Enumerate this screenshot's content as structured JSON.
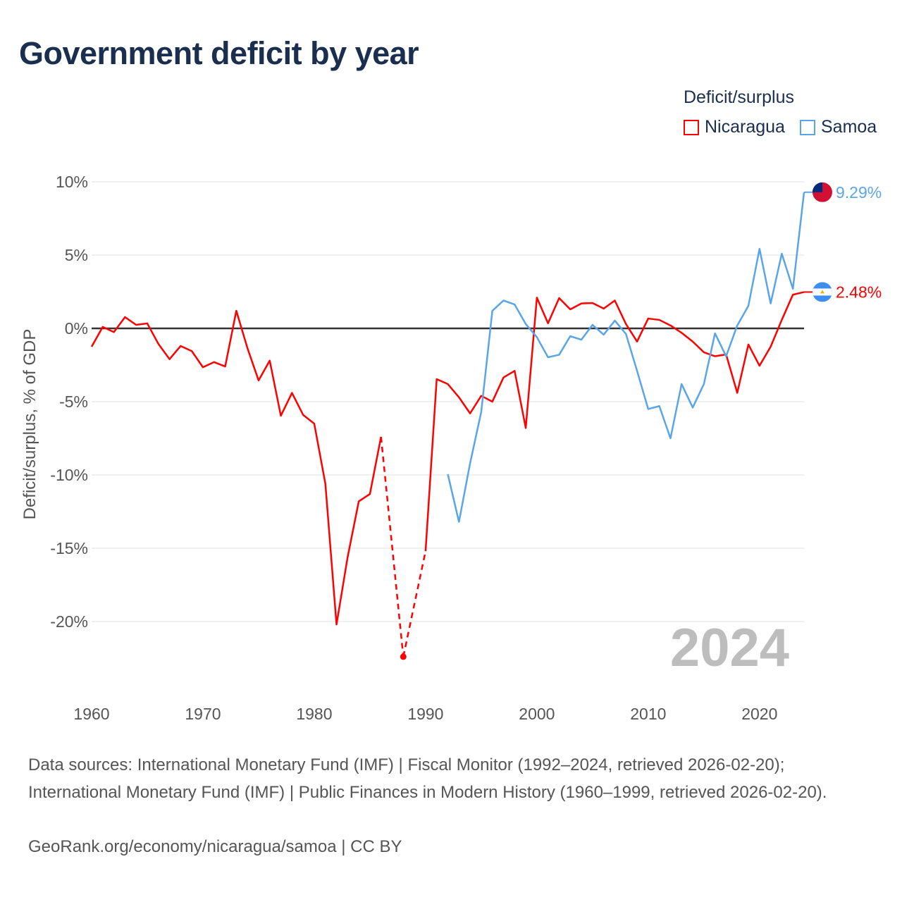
{
  "title": "Government deficit by year",
  "legend": {
    "title": "Deficit/surplus",
    "items": [
      {
        "name": "Nicaragua",
        "color": "#ff0000"
      },
      {
        "name": "Samoa",
        "color": "#5aa5e8"
      }
    ]
  },
  "chart_data": {
    "type": "line",
    "title": "Government deficit by year",
    "ylabel": "Deficit/surplus, % of GDP",
    "xlabel": "",
    "xlim": [
      1960,
      2024
    ],
    "ylim": [
      -24,
      10
    ],
    "x_ticks": [
      1960,
      1970,
      1980,
      1990,
      2000,
      2010,
      2020
    ],
    "x_tick_labels": [
      "1960",
      "1970",
      "1980",
      "1990",
      "2000",
      "2010",
      "2020"
    ],
    "y_ticks": [
      10,
      5,
      0,
      -5,
      -10,
      -15,
      -20
    ],
    "y_tick_labels": [
      "10%",
      "5%",
      "0%",
      "-5%",
      "-10%",
      "-15%",
      "-20%"
    ],
    "grid": true,
    "legend_position": "top-right",
    "year_watermark": "2024",
    "series": [
      {
        "name": "Nicaragua",
        "color": "#ff0000",
        "end_label": "2.48%",
        "points": [
          [
            1960,
            -1.25
          ],
          [
            1961,
            0.1
          ],
          [
            1962,
            -0.25
          ],
          [
            1963,
            0.77
          ],
          [
            1964,
            0.24
          ],
          [
            1965,
            0.34
          ],
          [
            1966,
            -1.06
          ],
          [
            1967,
            -2.1
          ],
          [
            1968,
            -1.2
          ],
          [
            1969,
            -1.55
          ],
          [
            1970,
            -2.65
          ],
          [
            1971,
            -2.3
          ],
          [
            1972,
            -2.6
          ],
          [
            1973,
            1.2
          ],
          [
            1974,
            -1.35
          ],
          [
            1975,
            -3.55
          ],
          [
            1976,
            -2.2
          ],
          [
            1977,
            -5.96
          ],
          [
            1978,
            -4.4
          ],
          [
            1979,
            -5.9
          ],
          [
            1980,
            -6.5
          ],
          [
            1981,
            -10.6
          ],
          [
            1982,
            -20.2
          ],
          [
            1983,
            -15.6
          ],
          [
            1984,
            -11.8
          ],
          [
            1985,
            -11.3
          ],
          [
            1986,
            -7.4
          ],
          [
            1988,
            -22.4
          ],
          [
            1990,
            -15.2
          ],
          [
            1991,
            -3.46
          ],
          [
            1992,
            -3.8
          ],
          [
            1993,
            -4.7
          ],
          [
            1994,
            -5.8
          ],
          [
            1995,
            -4.6
          ],
          [
            1996,
            -5.0
          ],
          [
            1997,
            -3.35
          ],
          [
            1998,
            -2.9
          ],
          [
            1999,
            -6.8
          ],
          [
            2000,
            2.1
          ],
          [
            2001,
            0.35
          ],
          [
            2002,
            2.07
          ],
          [
            2003,
            1.3
          ],
          [
            2004,
            1.7
          ],
          [
            2005,
            1.73
          ],
          [
            2006,
            1.35
          ],
          [
            2007,
            1.9
          ],
          [
            2008,
            0.3
          ],
          [
            2009,
            -0.9
          ],
          [
            2010,
            0.67
          ],
          [
            2011,
            0.58
          ],
          [
            2012,
            0.2
          ],
          [
            2013,
            -0.3
          ],
          [
            2014,
            -0.9
          ],
          [
            2015,
            -1.63
          ],
          [
            2016,
            -1.9
          ],
          [
            2017,
            -1.78
          ],
          [
            2018,
            -4.4
          ],
          [
            2019,
            -1.1
          ],
          [
            2020,
            -2.55
          ],
          [
            2021,
            -1.25
          ],
          [
            2022,
            0.58
          ],
          [
            2023,
            2.3
          ],
          [
            2024,
            2.48
          ]
        ]
      },
      {
        "name": "Samoa",
        "color": "#5aa5e8",
        "end_label": "9.29%",
        "points": [
          [
            1992,
            -9.95
          ],
          [
            1993,
            -13.2
          ],
          [
            1994,
            -9.2
          ],
          [
            1995,
            -5.7
          ],
          [
            1996,
            1.2
          ],
          [
            1997,
            1.9
          ],
          [
            1998,
            1.63
          ],
          [
            1999,
            0.3
          ],
          [
            2000,
            -0.6
          ],
          [
            2001,
            -1.97
          ],
          [
            2002,
            -1.8
          ],
          [
            2003,
            -0.53
          ],
          [
            2004,
            -0.77
          ],
          [
            2005,
            0.24
          ],
          [
            2006,
            -0.43
          ],
          [
            2007,
            0.53
          ],
          [
            2008,
            -0.38
          ],
          [
            2009,
            -2.9
          ],
          [
            2010,
            -5.5
          ],
          [
            2011,
            -5.3
          ],
          [
            2012,
            -7.5
          ],
          [
            2013,
            -3.8
          ],
          [
            2014,
            -5.4
          ],
          [
            2015,
            -3.8
          ],
          [
            2016,
            -0.34
          ],
          [
            2017,
            -1.9
          ],
          [
            2018,
            0.2
          ],
          [
            2019,
            1.54
          ],
          [
            2020,
            5.43
          ],
          [
            2021,
            1.7
          ],
          [
            2022,
            5.1
          ],
          [
            2023,
            2.7
          ],
          [
            2024,
            9.29
          ]
        ]
      }
    ]
  },
  "footer": {
    "sources": "Data sources: International Monetary Fund (IMF) | Fiscal Monitor (1992–2024, retrieved 2026-02-20); International Monetary Fund (IMF) | Public Finances in Modern History (1960–1999, retrieved 2026-02-20).",
    "credit": "GeoRank.org/economy/nicaragua/samoa | CC BY"
  }
}
